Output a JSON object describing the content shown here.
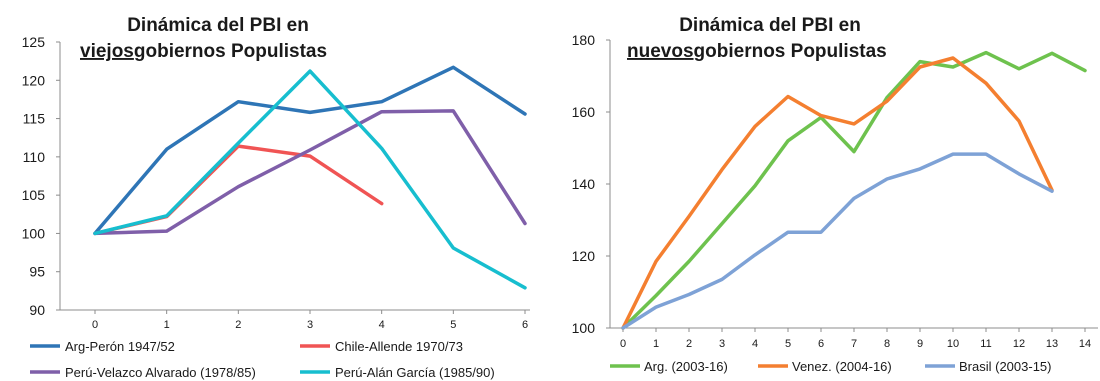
{
  "chart_data": [
    {
      "type": "line",
      "title_line1": "Dinámica del PBI en",
      "title_line2_underlined": "viejos",
      "title_line2_rest": "gobiernos Populistas",
      "categories": [
        "0",
        "1",
        "2",
        "3",
        "4",
        "5",
        "6"
      ],
      "ylim": [
        90,
        125
      ],
      "yticks": [
        "90",
        "95",
        "100",
        "105",
        "110",
        "115",
        "120",
        "125"
      ],
      "legend_position": "bottom",
      "series": [
        {
          "name": "Arg-Perón 1947/52",
          "color": "#2e75b6",
          "values": [
            100,
            111,
            117.2,
            115.8,
            117.2,
            121.7,
            115.6
          ]
        },
        {
          "name": "Chile-Allende 1970/73",
          "color": "#f05454",
          "values": [
            100,
            102.2,
            111.4,
            110.1,
            103.9,
            null,
            null
          ]
        },
        {
          "name": "Perú-Velazco Alvarado (1978/85)",
          "color": "#7f5fa9",
          "values": [
            100,
            100.3,
            106.1,
            110.9,
            115.9,
            116,
            101.3
          ]
        },
        {
          "name": "Perú-Alán García (1985/90)",
          "color": "#17becf",
          "values": [
            100,
            102.3,
            111.8,
            121.2,
            111.1,
            98.1,
            92.9
          ]
        }
      ]
    },
    {
      "type": "line",
      "title_line1": "Dinámica del PBI en",
      "title_line2_underlined": "nuevos",
      "title_line2_rest": "gobiernos Populistas",
      "categories": [
        "0",
        "1",
        "2",
        "3",
        "4",
        "5",
        "6",
        "7",
        "8",
        "9",
        "10",
        "11",
        "12",
        "13",
        "14"
      ],
      "ylim": [
        100,
        180
      ],
      "yticks": [
        "100",
        "120",
        "140",
        "160",
        "180"
      ],
      "legend_position": "bottom",
      "series": [
        {
          "name": "Arg. (2003-16)",
          "color": "#6ec24e",
          "values": [
            100,
            109,
            118.5,
            129,
            139.5,
            152,
            158.5,
            149,
            164,
            174,
            172.5,
            176.5,
            172,
            176.3,
            171.5
          ]
        },
        {
          "name": "Venez. (2004-16)",
          "color": "#f47f30",
          "values": [
            100,
            118.5,
            131,
            144,
            156,
            164.3,
            159,
            156.7,
            163,
            172.5,
            175,
            168,
            157.5,
            138.3,
            null
          ]
        },
        {
          "name": "Brasil (2003-15)",
          "color": "#7ea2d6",
          "values": [
            100,
            105.8,
            109.3,
            113.5,
            120.3,
            126.6,
            126.6,
            136,
            141.4,
            144.2,
            148.3,
            148.3,
            142.8,
            138,
            null
          ]
        }
      ]
    }
  ]
}
